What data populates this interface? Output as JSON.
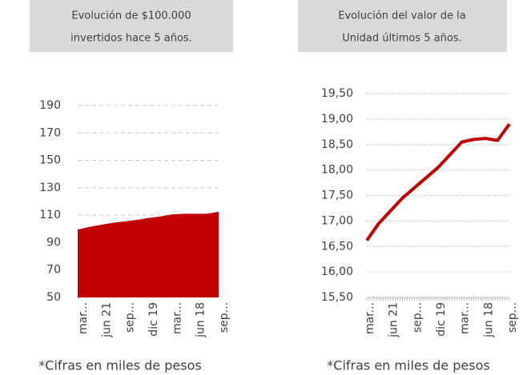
{
  "chart_data": [
    {
      "type": "area",
      "title": [
        "Evolución de $100.000",
        "invertidos hace 5 años."
      ],
      "note": "*Cifras en miles de pesos",
      "categories": [
        "mar...",
        null,
        "jun 21",
        null,
        "sep...",
        null,
        "dic 19",
        null,
        "mar...",
        null,
        "jun 18",
        null,
        "sep..."
      ],
      "values": [
        99.5,
        101.5,
        103,
        104.5,
        105.5,
        106.5,
        108,
        109,
        110.5,
        111,
        111,
        111,
        112.5
      ],
      "color": "#c00000",
      "ylim": [
        50,
        190
      ],
      "yticks": [
        50,
        70,
        90,
        110,
        130,
        150,
        170,
        190
      ],
      "grid": true
    },
    {
      "type": "line",
      "title": [
        "Evolución del valor de la",
        "Unidad últimos 5 años."
      ],
      "note": "*Cifras en miles de pesos",
      "categories": [
        "mar...",
        null,
        "jun 21",
        null,
        "sep...",
        null,
        "dic 19",
        null,
        "mar...",
        null,
        "jun 18",
        null,
        "sep..."
      ],
      "values": [
        16.62,
        16.95,
        17.2,
        17.45,
        17.65,
        17.85,
        18.05,
        18.3,
        18.55,
        18.6,
        18.62,
        18.58,
        18.9
      ],
      "color": "#c00000",
      "ylim": [
        15.5,
        19.5
      ],
      "yticks": [
        {
          "value": 15.5,
          "label": "15,50"
        },
        {
          "value": 16,
          "label": "16,00"
        },
        {
          "value": 16.5,
          "label": "16,50"
        },
        {
          "value": 17,
          "label": "17,00"
        },
        {
          "value": 17.5,
          "label": "17,50"
        },
        {
          "value": 18,
          "label": "18,00"
        },
        {
          "value": 18.5,
          "label": "18,50"
        },
        {
          "value": 19,
          "label": "19,00"
        },
        {
          "value": 19.5,
          "label": "19,50"
        }
      ],
      "grid": true
    }
  ]
}
